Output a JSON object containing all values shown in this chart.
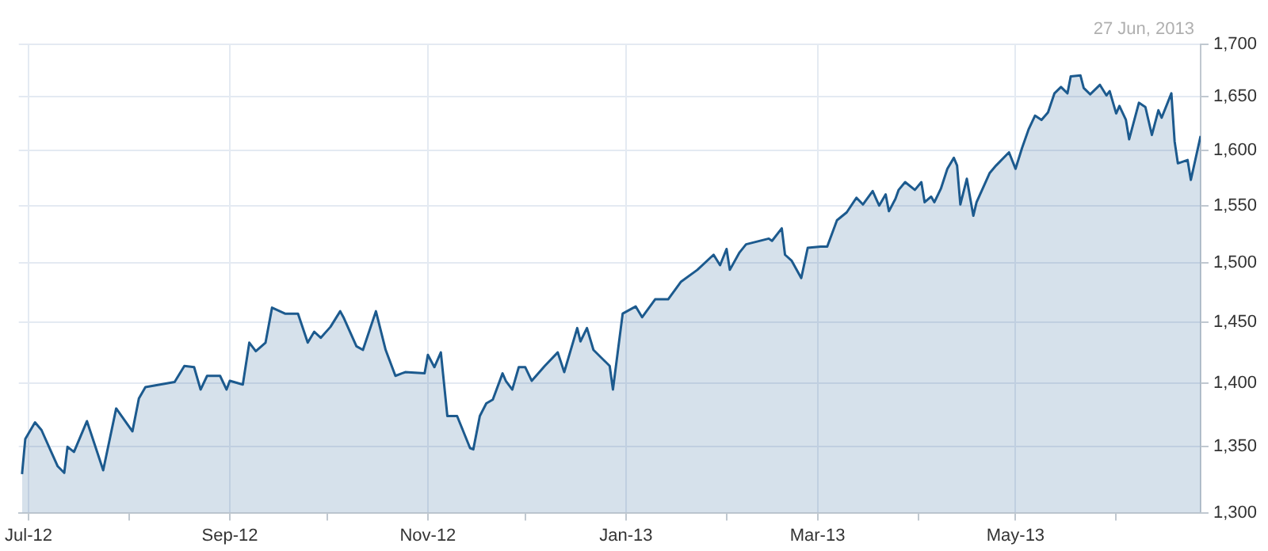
{
  "chart_data": {
    "type": "area",
    "annotations": [
      "27 Jun, 2013"
    ],
    "log": "y",
    "grid": true,
    "legend": false,
    "xlim": [
      "2012-06-28",
      "2013-06-27"
    ],
    "xticks": [
      {
        "value": "2012-07-01",
        "label": "Jul-12"
      },
      {
        "value": "2012-08-01",
        "label": null
      },
      {
        "value": "2012-09-01",
        "label": "Sep-12"
      },
      {
        "value": "2012-10-01",
        "label": null
      },
      {
        "value": "2012-11-01",
        "label": "Nov-12"
      },
      {
        "value": "2012-12-01",
        "label": null
      },
      {
        "value": "2013-01-01",
        "label": "Jan-13"
      },
      {
        "value": "2013-02-01",
        "label": null
      },
      {
        "value": "2013-03-01",
        "label": "Mar-13"
      },
      {
        "value": "2013-04-01",
        "label": null
      },
      {
        "value": "2013-05-01",
        "label": "May-13"
      },
      {
        "value": "2013-06-01",
        "label": null
      }
    ],
    "ylim": [
      1300,
      1700
    ],
    "yticks": [
      {
        "value": 1300,
        "label": "1,300"
      },
      {
        "value": 1350,
        "label": "1,350"
      },
      {
        "value": 1400,
        "label": "1,400"
      },
      {
        "value": 1450,
        "label": "1,450"
      },
      {
        "value": 1500,
        "label": "1,500"
      },
      {
        "value": 1550,
        "label": "1,550"
      },
      {
        "value": 1600,
        "label": "1,600"
      },
      {
        "value": 1650,
        "label": "1,650"
      },
      {
        "value": 1700,
        "label": "1,700"
      }
    ],
    "x": [
      "2012-06-29",
      "2012-06-30",
      "2012-07-03",
      "2012-07-05",
      "2012-07-08",
      "2012-07-10",
      "2012-07-12",
      "2012-07-13",
      "2012-07-15",
      "2012-07-19",
      "2012-07-24",
      "2012-07-28",
      "2012-08-02",
      "2012-08-04",
      "2012-08-06",
      "2012-08-15",
      "2012-08-18",
      "2012-08-21",
      "2012-08-23",
      "2012-08-25",
      "2012-08-29",
      "2012-08-31",
      "2012-09-01",
      "2012-09-05",
      "2012-09-07",
      "2012-09-09",
      "2012-09-12",
      "2012-09-14",
      "2012-09-18",
      "2012-09-22",
      "2012-09-25",
      "2012-09-27",
      "2012-09-29",
      "2012-10-02",
      "2012-10-05",
      "2012-10-06",
      "2012-10-10",
      "2012-10-12",
      "2012-10-16",
      "2012-10-19",
      "2012-10-22",
      "2012-10-25",
      "2012-10-31",
      "2012-11-01",
      "2012-11-03",
      "2012-11-05",
      "2012-11-07",
      "2012-11-10",
      "2012-11-14",
      "2012-11-15",
      "2012-11-17",
      "2012-11-19",
      "2012-11-21",
      "2012-11-24",
      "2012-11-25",
      "2012-11-27",
      "2012-11-29",
      "2012-12-01",
      "2012-12-03",
      "2012-12-07",
      "2012-12-11",
      "2012-12-13",
      "2012-12-17",
      "2012-12-18",
      "2012-12-20",
      "2012-12-22",
      "2012-12-27",
      "2012-12-28",
      "2012-12-31",
      "2013-01-04",
      "2013-01-06",
      "2013-01-10",
      "2013-01-14",
      "2013-01-18",
      "2013-01-23",
      "2013-01-28",
      "2013-01-30",
      "2013-02-01",
      "2013-02-02",
      "2013-02-05",
      "2013-02-07",
      "2013-02-14",
      "2013-02-15",
      "2013-02-18",
      "2013-02-19",
      "2013-02-21",
      "2013-02-24",
      "2013-02-26",
      "2013-03-02",
      "2013-03-04",
      "2013-03-07",
      "2013-03-10",
      "2013-03-13",
      "2013-03-15",
      "2013-03-18",
      "2013-03-20",
      "2013-03-22",
      "2013-03-23",
      "2013-03-25",
      "2013-03-26",
      "2013-03-28",
      "2013-03-31",
      "2013-04-02",
      "2013-04-03",
      "2013-04-05",
      "2013-04-06",
      "2013-04-08",
      "2013-04-10",
      "2013-04-12",
      "2013-04-13",
      "2013-04-14",
      "2013-04-16",
      "2013-04-18",
      "2013-04-19",
      "2013-04-23",
      "2013-04-25",
      "2013-04-29",
      "2013-05-01",
      "2013-05-03",
      "2013-05-05",
      "2013-05-07",
      "2013-05-09",
      "2013-05-11",
      "2013-05-13",
      "2013-05-15",
      "2013-05-17",
      "2013-05-18",
      "2013-05-21",
      "2013-05-22",
      "2013-05-24",
      "2013-05-27",
      "2013-05-29",
      "2013-05-30",
      "2013-06-01",
      "2013-06-02",
      "2013-06-04",
      "2013-06-05",
      "2013-06-08",
      "2013-06-10",
      "2013-06-12",
      "2013-06-14",
      "2013-06-15",
      "2013-06-18",
      "2013-06-19",
      "2013-06-20",
      "2013-06-23",
      "2013-06-24",
      "2013-06-27"
    ],
    "series": [
      {
        "color": "#1c5a8e",
        "values": [
          1329,
          1356,
          1369,
          1363,
          1346,
          1335,
          1330,
          1350,
          1346,
          1370,
          1332,
          1380,
          1362,
          1388,
          1397,
          1401,
          1414,
          1413,
          1395,
          1406,
          1406,
          1395,
          1402,
          1399,
          1433,
          1426,
          1433,
          1462,
          1457,
          1457,
          1433,
          1442,
          1437,
          1446,
          1459,
          1454,
          1430,
          1427,
          1459,
          1427,
          1406,
          1409,
          1408,
          1423,
          1413,
          1425,
          1374,
          1374,
          1349,
          1348,
          1374,
          1384,
          1387,
          1408,
          1402,
          1395,
          1413,
          1413,
          1402,
          1414,
          1425,
          1409,
          1445,
          1434,
          1445,
          1427,
          1414,
          1395,
          1457,
          1463,
          1454,
          1469,
          1469,
          1484,
          1494,
          1507,
          1498,
          1512,
          1494,
          1509,
          1516,
          1521,
          1519,
          1530,
          1507,
          1502,
          1487,
          1513,
          1514,
          1514,
          1537,
          1544,
          1557,
          1551,
          1563,
          1550,
          1560,
          1545,
          1556,
          1564,
          1571,
          1564,
          1571,
          1553,
          1558,
          1553,
          1565,
          1583,
          1593,
          1586,
          1551,
          1574,
          1541,
          1553,
          1579,
          1586,
          1598,
          1583,
          1602,
          1619,
          1632,
          1628,
          1635,
          1653,
          1659,
          1653,
          1669,
          1670,
          1658,
          1652,
          1661,
          1651,
          1655,
          1634,
          1641,
          1628,
          1610,
          1644,
          1640,
          1614,
          1637,
          1630,
          1653,
          1608,
          1588,
          1591,
          1573,
          1613
        ]
      }
    ]
  }
}
